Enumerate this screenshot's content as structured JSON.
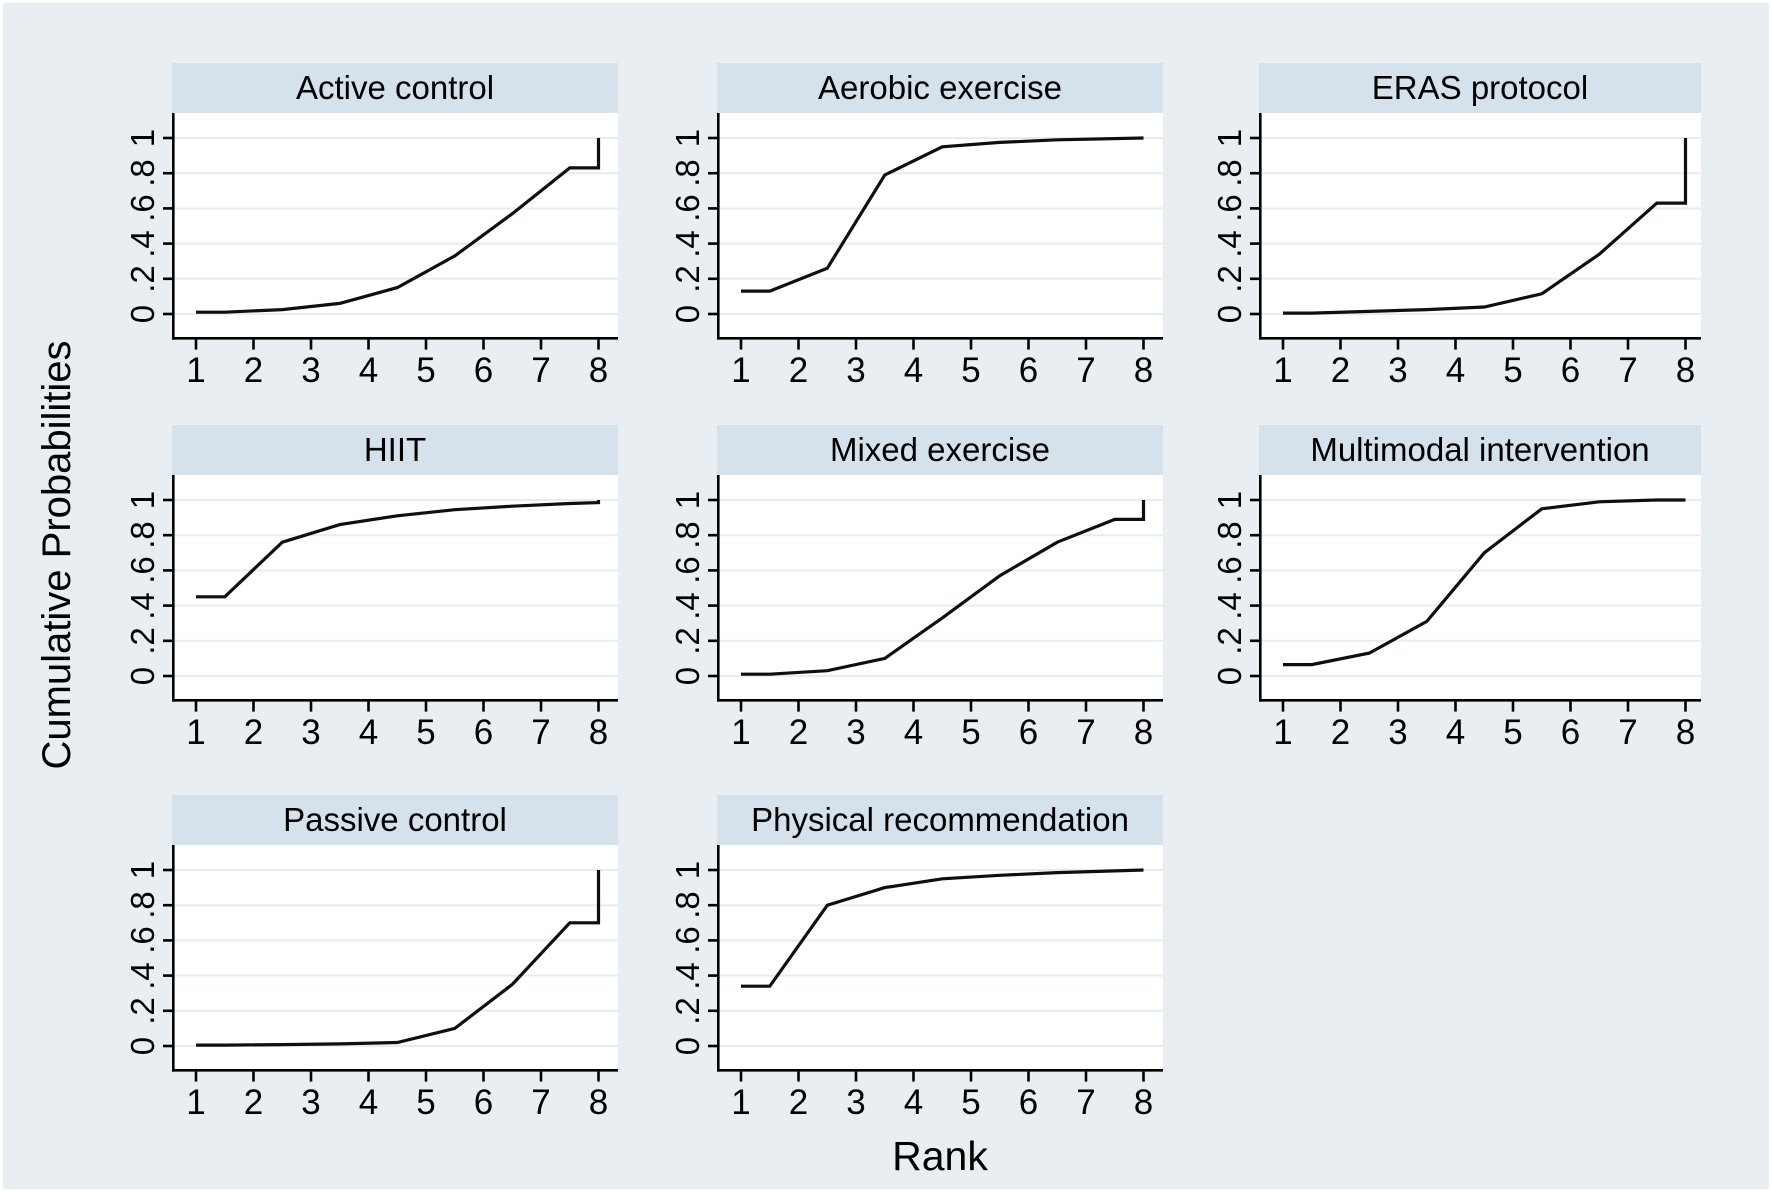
{
  "figure": {
    "ylabel": "Cumulative Probabilities",
    "xlabel": "Rank",
    "background_color": "#e8eef1",
    "panel_header_color": "#d5e2eb",
    "plot_background_color": "#ffffff",
    "gridline_color": "#e7edee",
    "curve_color": "#0f0f0f",
    "axis_color": "#000000"
  },
  "chart_data": {
    "type": "line",
    "layout": "small-multiples grid (3 columns x 3 rows) of cumulative ranking probability curves",
    "title": "",
    "xlabel": "Rank",
    "ylabel": "Cumulative Probabilities",
    "xlim": [
      1,
      8
    ],
    "ylim": [
      0,
      1
    ],
    "grid": true,
    "x_ticks": [
      1,
      2,
      3,
      4,
      5,
      6,
      7,
      8
    ],
    "x_tick_labels": [
      "1",
      "2",
      "3",
      "4",
      "5",
      "6",
      "7",
      "8"
    ],
    "y_ticks": [
      0,
      0.2,
      0.4,
      0.6,
      0.8,
      1
    ],
    "y_tick_labels": [
      "0",
      ".2",
      ".4",
      ".6",
      ".8",
      "1"
    ],
    "panels": [
      {
        "title": "Active control",
        "row": 0,
        "col": 0,
        "points": [
          [
            1,
            0.01
          ],
          [
            1.5,
            0.01
          ],
          [
            2.5,
            0.025
          ],
          [
            3.5,
            0.06
          ],
          [
            4.5,
            0.15
          ],
          [
            5.5,
            0.33
          ],
          [
            6.5,
            0.57
          ],
          [
            7.5,
            0.83
          ],
          [
            8,
            0.83
          ],
          [
            8,
            1.0
          ]
        ]
      },
      {
        "title": "Aerobic exercise",
        "row": 0,
        "col": 1,
        "points": [
          [
            1,
            0.13
          ],
          [
            1.5,
            0.13
          ],
          [
            2.5,
            0.26
          ],
          [
            3.5,
            0.79
          ],
          [
            4.5,
            0.95
          ],
          [
            5.5,
            0.975
          ],
          [
            6.5,
            0.99
          ],
          [
            8,
            1.0
          ]
        ]
      },
      {
        "title": "ERAS protocol",
        "row": 0,
        "col": 2,
        "points": [
          [
            1,
            0.005
          ],
          [
            1.5,
            0.005
          ],
          [
            2.5,
            0.015
          ],
          [
            3.5,
            0.025
          ],
          [
            4.5,
            0.04
          ],
          [
            5.5,
            0.115
          ],
          [
            6.5,
            0.34
          ],
          [
            7.5,
            0.63
          ],
          [
            8,
            0.63
          ],
          [
            8,
            1.0
          ]
        ]
      },
      {
        "title": "HIIT",
        "row": 1,
        "col": 0,
        "points": [
          [
            1,
            0.45
          ],
          [
            1.5,
            0.45
          ],
          [
            2.5,
            0.76
          ],
          [
            3.5,
            0.86
          ],
          [
            4.5,
            0.91
          ],
          [
            5.5,
            0.945
          ],
          [
            6.5,
            0.965
          ],
          [
            7.5,
            0.98
          ],
          [
            8,
            0.985
          ],
          [
            8,
            1.0
          ]
        ]
      },
      {
        "title": "Mixed exercise",
        "row": 1,
        "col": 1,
        "points": [
          [
            1,
            0.01
          ],
          [
            1.5,
            0.01
          ],
          [
            2.5,
            0.03
          ],
          [
            3.5,
            0.1
          ],
          [
            4.5,
            0.33
          ],
          [
            5.5,
            0.57
          ],
          [
            6.5,
            0.76
          ],
          [
            7.5,
            0.89
          ],
          [
            8,
            0.89
          ],
          [
            8,
            1.0
          ]
        ]
      },
      {
        "title": "Multimodal intervention",
        "row": 1,
        "col": 2,
        "points": [
          [
            1,
            0.065
          ],
          [
            1.5,
            0.065
          ],
          [
            2.5,
            0.13
          ],
          [
            3.5,
            0.31
          ],
          [
            4.5,
            0.7
          ],
          [
            5.5,
            0.95
          ],
          [
            6.5,
            0.99
          ],
          [
            7.5,
            1.0
          ],
          [
            8,
            1.0
          ]
        ]
      },
      {
        "title": "Passive control",
        "row": 2,
        "col": 0,
        "points": [
          [
            1,
            0.005
          ],
          [
            1.5,
            0.005
          ],
          [
            2.5,
            0.008
          ],
          [
            3.5,
            0.012
          ],
          [
            4.5,
            0.02
          ],
          [
            5.5,
            0.1
          ],
          [
            6.5,
            0.35
          ],
          [
            7.5,
            0.7
          ],
          [
            8,
            0.7
          ],
          [
            8,
            1.0
          ]
        ]
      },
      {
        "title": "Physical recommendation",
        "row": 2,
        "col": 1,
        "points": [
          [
            1,
            0.34
          ],
          [
            1.5,
            0.34
          ],
          [
            2.5,
            0.8
          ],
          [
            3.5,
            0.9
          ],
          [
            4.5,
            0.95
          ],
          [
            5.5,
            0.97
          ],
          [
            6.5,
            0.985
          ],
          [
            7.5,
            0.995
          ],
          [
            8,
            1.0
          ]
        ]
      }
    ]
  }
}
